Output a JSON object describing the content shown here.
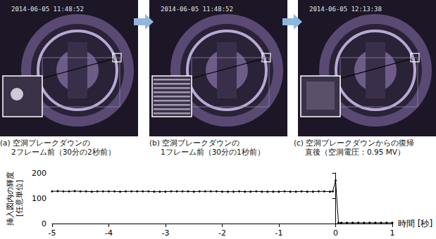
{
  "panels": [
    {
      "timestamp": "2014-06-05 11:48:52",
      "caption": [
        "(a) 空洞ブレークダウンの",
        "2フレーム前（30分の2秒前）"
      ]
    },
    {
      "timestamp": "2014-06-05 11:48:52",
      "caption": [
        "(b) 空洞ブレークダウンの",
        "1フレーム前（30分の1秒前）"
      ]
    },
    {
      "timestamp": "2014-06-05 12:13:38",
      "caption": [
        "(c) 空洞ブレークダウンからの復帰",
        "直後（空洞電圧：0.95 MV）"
      ]
    }
  ],
  "chart_data": {
    "type": "line",
    "x_label": "時間 [秒]",
    "y_label": "挿入図内の輝度\n[任意単位]",
    "x": [
      -5.0,
      -4.9,
      -4.8,
      -4.7,
      -4.6,
      -4.5,
      -4.4,
      -4.3,
      -4.2,
      -4.1,
      -4.0,
      -3.9,
      -3.8,
      -3.7,
      -3.6,
      -3.5,
      -3.4,
      -3.3,
      -3.2,
      -3.1,
      -3.0,
      -2.9,
      -2.8,
      -2.7,
      -2.6,
      -2.5,
      -2.4,
      -2.3,
      -2.2,
      -2.1,
      -2.0,
      -1.9,
      -1.8,
      -1.7,
      -1.6,
      -1.5,
      -1.4,
      -1.3,
      -1.2,
      -1.1,
      -1.0,
      -0.9,
      -0.8,
      -0.7,
      -0.6,
      -0.5,
      -0.4,
      -0.3,
      -0.2,
      -0.1,
      -0.05,
      0,
      0.05,
      0.1,
      0.2,
      0.3,
      0.4,
      0.5,
      0.6,
      0.7,
      0.8,
      0.9,
      1.0
    ],
    "values": [
      127,
      128,
      127,
      127,
      128,
      127,
      127,
      126,
      127,
      127,
      127,
      127,
      126,
      127,
      127,
      127,
      127,
      127,
      126,
      126,
      126,
      127,
      127,
      127,
      127,
      126,
      127,
      127,
      127,
      127,
      126,
      126,
      126,
      127,
      126,
      126,
      127,
      126,
      126,
      126,
      126,
      127,
      126,
      126,
      127,
      126,
      126,
      127,
      127,
      126,
      127,
      170,
      3,
      3,
      3,
      3,
      3,
      3,
      3,
      3,
      3,
      3,
      3
    ],
    "color": "#000000",
    "marker": "circle",
    "xlim": [
      -5,
      1
    ],
    "xticks": [
      -5,
      -4,
      -3,
      -2,
      -1,
      0,
      1
    ],
    "ylim": [
      0,
      200
    ],
    "yticks": [
      0,
      100,
      200
    ],
    "grid": false
  }
}
